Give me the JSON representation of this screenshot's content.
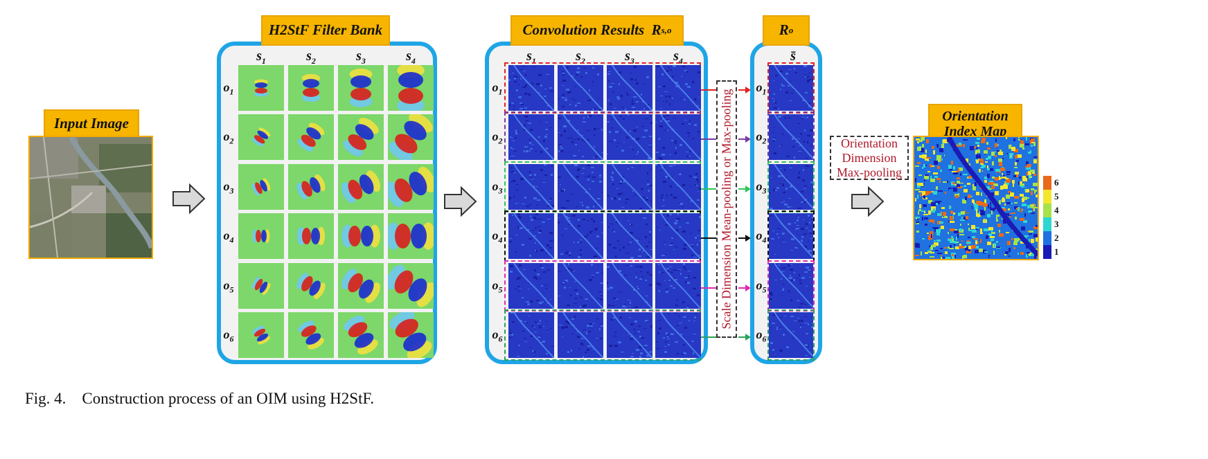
{
  "input": {
    "title": "Input Image"
  },
  "filter_bank": {
    "title": "H2StF Filter Bank",
    "scales": [
      "s",
      "s",
      "s",
      "s"
    ],
    "scale_subs": [
      "1",
      "2",
      "3",
      "4"
    ],
    "orients": [
      "o",
      "o",
      "o",
      "o",
      "o",
      "o"
    ],
    "orient_subs": [
      "1",
      "2",
      "3",
      "4",
      "5",
      "6"
    ]
  },
  "conv": {
    "title": "Convolution Results",
    "title_sym": "R",
    "title_sub": "s,o"
  },
  "pool_label": "Scale Dimension  Mean-pooling or Max-pooling",
  "ro": {
    "title_sym": "R",
    "title_sub": "o",
    "col_label": "s̄"
  },
  "orientation_pool": {
    "lines": [
      "Orientation",
      "Dimension",
      "Max-pooling"
    ]
  },
  "oim": {
    "title_line1": "Orientation",
    "title_line2": "Index Map"
  },
  "colorbar": {
    "labels": [
      "6",
      "5",
      "4",
      "3",
      "2",
      "1"
    ],
    "colors": [
      "#e86a1a",
      "#f3e62c",
      "#a7e24b",
      "#2fd6d1",
      "#1f72e0",
      "#1b1bb5"
    ]
  },
  "row_colors": [
    "#e32222",
    "#7a3aa6",
    "#2ec45a",
    "#111111",
    "#e02bb0",
    "#2aa35a"
  ],
  "caption": "Fig. 4.    Construction process of an OIM using H2StF."
}
